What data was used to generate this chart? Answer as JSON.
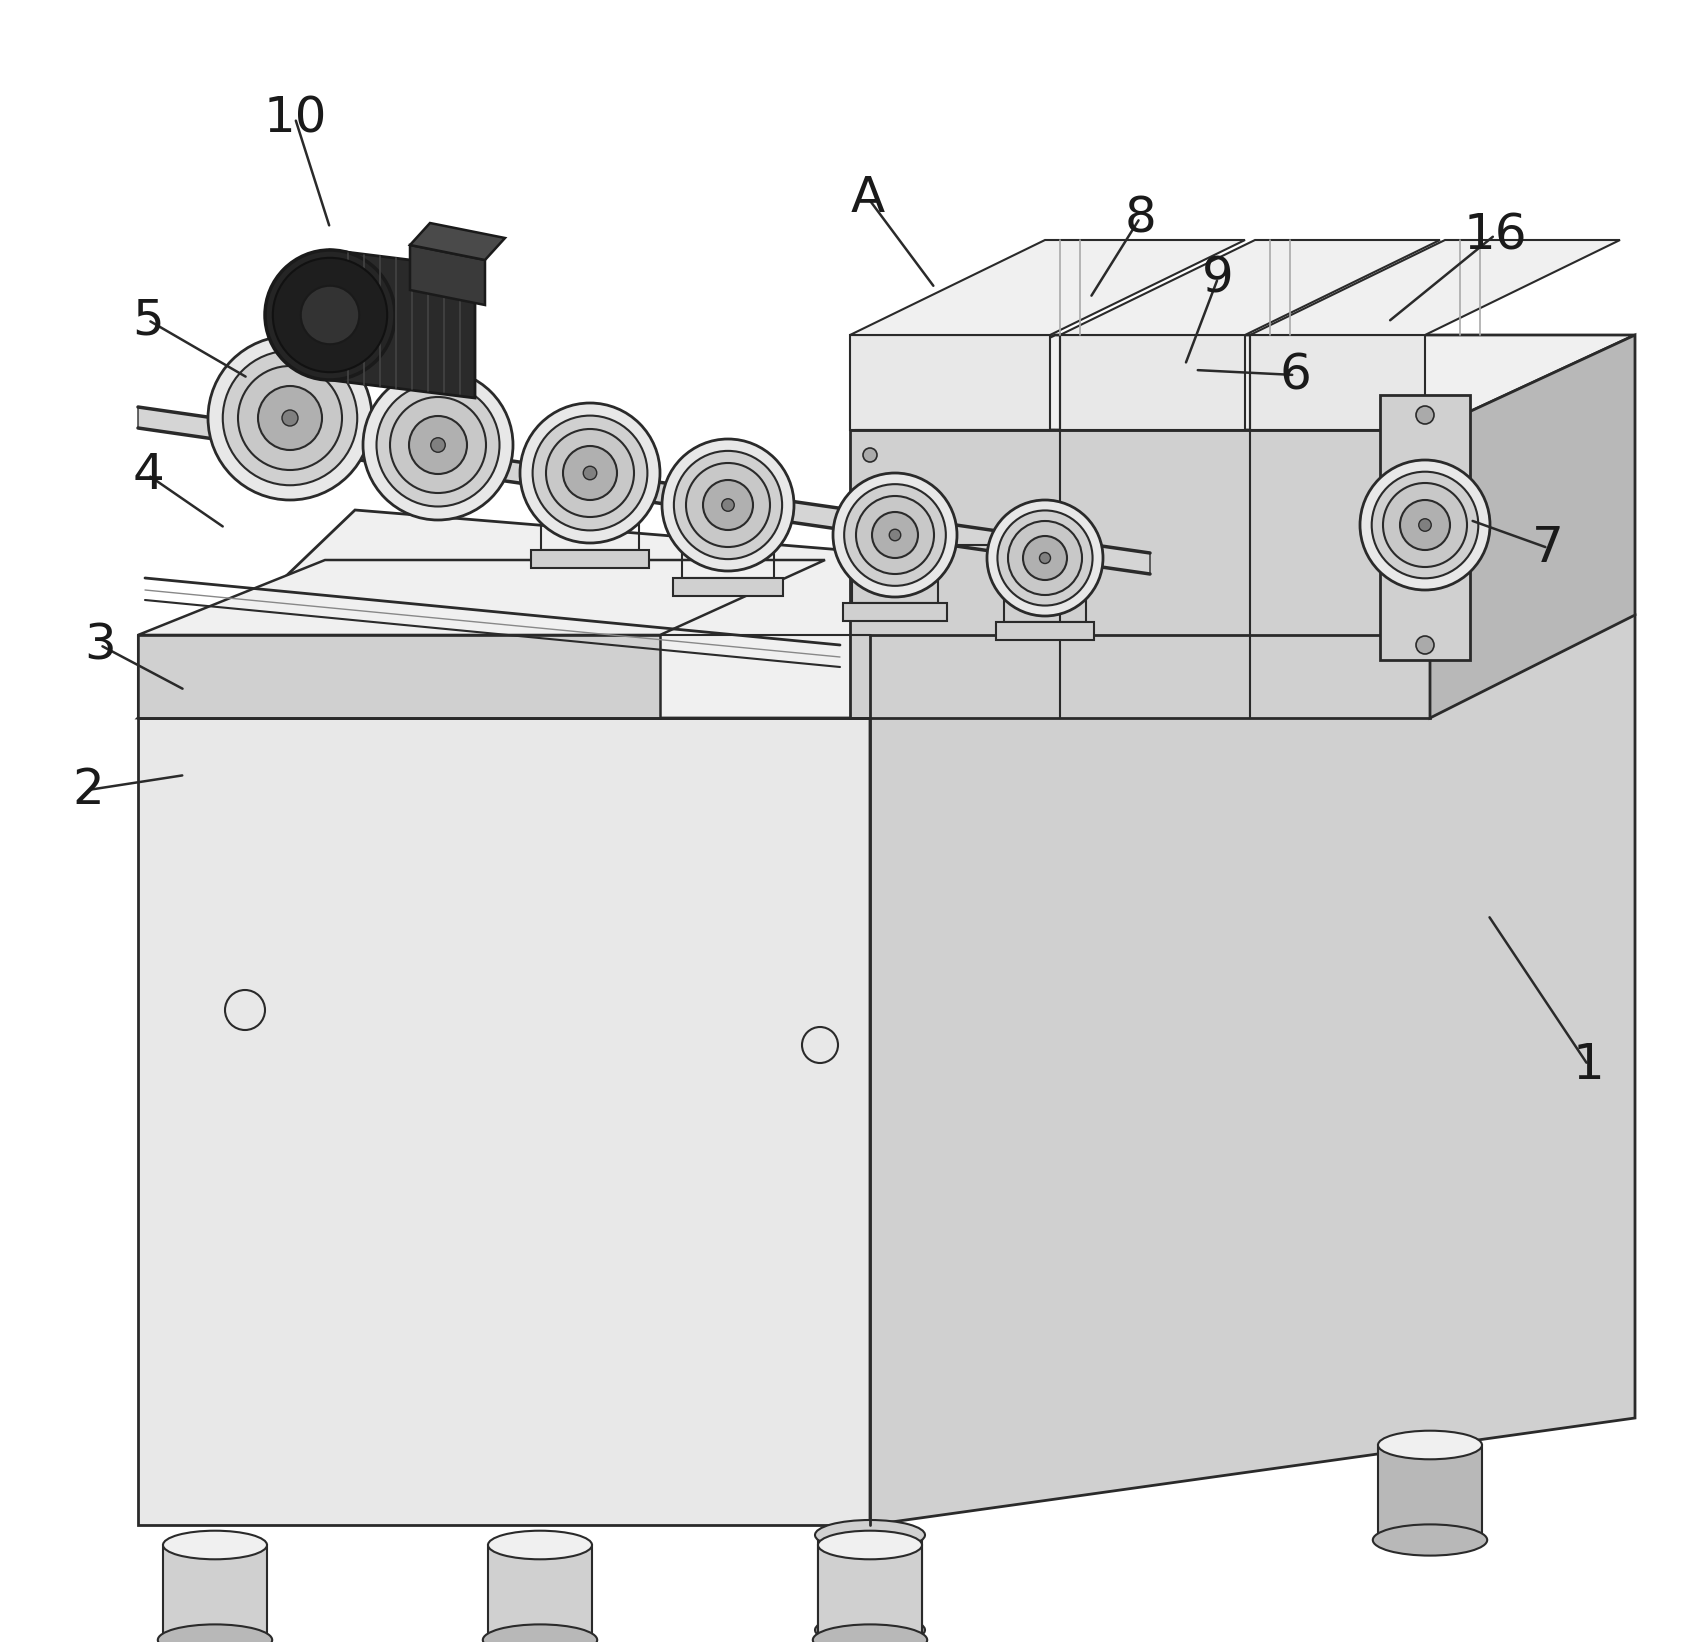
{
  "background_color": "#ffffff",
  "line_color": "#2a2a2a",
  "dark_color": "#1a1a1a",
  "face_light": "#e8e8e8",
  "face_mid": "#d0d0d0",
  "face_dark": "#b8b8b8",
  "face_darker": "#a0a0a0",
  "face_top": "#f0f0f0",
  "motor_dark": "#1e1e1e",
  "motor_mid": "#3a3a3a",
  "label_fontsize": 36,
  "figsize": [
    17.05,
    16.42
  ],
  "dpi": 100,
  "annotations": [
    [
      "10",
      295,
      118,
      330,
      228
    ],
    [
      "5",
      148,
      320,
      248,
      378
    ],
    [
      "4",
      148,
      475,
      225,
      528
    ],
    [
      "3",
      100,
      645,
      185,
      690
    ],
    [
      "2",
      88,
      790,
      185,
      775
    ],
    [
      "1",
      1588,
      1065,
      1488,
      915
    ],
    [
      "6",
      1295,
      375,
      1195,
      370
    ],
    [
      "7",
      1548,
      548,
      1470,
      520
    ],
    [
      "8",
      1140,
      218,
      1090,
      298
    ],
    [
      "9",
      1218,
      278,
      1185,
      365
    ],
    [
      "16",
      1495,
      235,
      1388,
      322
    ],
    [
      "A",
      868,
      198,
      935,
      288
    ]
  ]
}
